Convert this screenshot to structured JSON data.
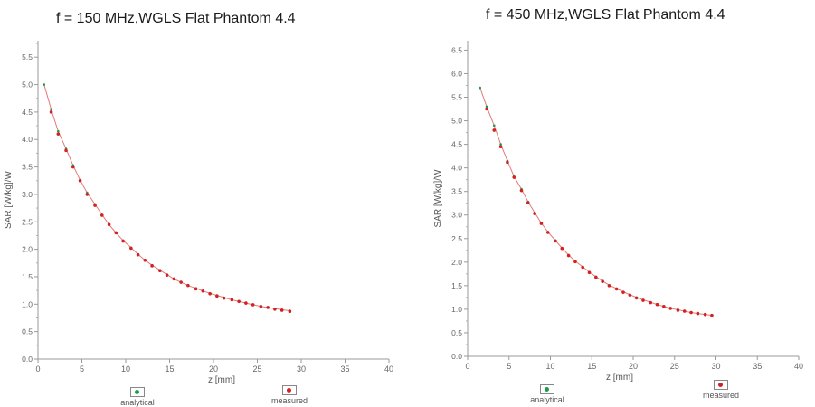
{
  "chart_data": [
    {
      "type": "scatter",
      "title": "f = 150 MHz,WGLS Flat Phantom 4.4",
      "xlabel": "z [mm]",
      "ylabel": "SAR [W/kg]/W",
      "xlim": [
        0,
        40
      ],
      "ylim": [
        0,
        5.8
      ],
      "xticks": [
        "0",
        "5",
        "10",
        "15",
        "20",
        "25",
        "30",
        "35",
        "40"
      ],
      "yticks": [
        "0.0",
        "0.5",
        "1.0",
        "1.5",
        "2.0",
        "2.5",
        "3.0",
        "3.5",
        "4.0",
        "4.5",
        "5.0",
        "5.5"
      ],
      "legend_position": "bottom",
      "series": [
        {
          "name": "analytical",
          "color": "#1e9a4b",
          "x": [
            0.7,
            1.5,
            2.3,
            3.2,
            4.0,
            4.8,
            5.6,
            6.5,
            7.3,
            8.1,
            8.9,
            9.7,
            10.6,
            11.4,
            12.2,
            13.0,
            13.9,
            14.7,
            15.5,
            16.3,
            17.1,
            18.0,
            18.8,
            19.6,
            20.4,
            21.2,
            22.1,
            22.9,
            23.7,
            24.5,
            25.4,
            26.2,
            27.0,
            27.8,
            28.7
          ],
          "y": [
            5.0,
            4.55,
            4.15,
            3.83,
            3.53,
            3.26,
            3.03,
            2.82,
            2.63,
            2.45,
            2.3,
            2.16,
            2.03,
            1.91,
            1.8,
            1.71,
            1.62,
            1.54,
            1.46,
            1.4,
            1.34,
            1.29,
            1.24,
            1.2,
            1.16,
            1.12,
            1.08,
            1.05,
            1.02,
            0.99,
            0.96,
            0.94,
            0.92,
            0.9,
            0.88
          ]
        },
        {
          "name": "measured",
          "color": "#d42020",
          "x": [
            1.5,
            2.3,
            3.2,
            4.0,
            4.8,
            5.6,
            6.5,
            7.3,
            8.1,
            8.9,
            9.7,
            10.6,
            11.4,
            12.2,
            13.0,
            13.9,
            14.7,
            15.5,
            16.3,
            17.1,
            18.0,
            18.8,
            19.6,
            20.4,
            21.2,
            22.1,
            22.9,
            23.7,
            24.5,
            25.4,
            26.2,
            27.0,
            27.8,
            28.7
          ],
          "y": [
            4.5,
            4.1,
            3.8,
            3.5,
            3.25,
            3.0,
            2.8,
            2.62,
            2.45,
            2.3,
            2.15,
            2.02,
            1.9,
            1.8,
            1.7,
            1.61,
            1.53,
            1.46,
            1.4,
            1.34,
            1.28,
            1.24,
            1.19,
            1.15,
            1.11,
            1.08,
            1.05,
            1.02,
            0.99,
            0.96,
            0.94,
            0.91,
            0.89,
            0.87
          ]
        }
      ]
    },
    {
      "type": "scatter",
      "title": "f = 450 MHz,WGLS Flat Phantom 4.4",
      "xlabel": "z [mm]",
      "ylabel": "SAR [W/kg]/W",
      "xlim": [
        0,
        40
      ],
      "ylim": [
        0,
        6.7
      ],
      "xticks": [
        "0",
        "5",
        "10",
        "15",
        "20",
        "25",
        "30",
        "35",
        "40"
      ],
      "yticks": [
        "0.0",
        "0.5",
        "1.0",
        "1.5",
        "2.0",
        "2.5",
        "3.0",
        "3.5",
        "4.0",
        "4.5",
        "5.0",
        "5.5",
        "6.0",
        "6.5"
      ],
      "legend_position": "bottom",
      "series": [
        {
          "name": "analytical",
          "color": "#1e9a4b",
          "x": [
            1.5,
            2.3,
            3.2,
            4.0,
            4.8,
            5.6,
            6.5,
            7.3,
            8.1,
            8.9,
            9.7,
            10.6,
            11.4,
            12.2,
            13.0,
            13.9,
            14.7,
            15.5,
            16.3,
            17.1,
            18.0,
            18.8,
            19.6,
            20.4,
            21.2,
            22.1,
            22.9,
            23.7,
            24.5,
            25.4,
            26.2,
            27.0,
            27.8,
            28.7,
            29.5
          ],
          "y": [
            5.7,
            5.3,
            4.9,
            4.5,
            4.15,
            3.82,
            3.55,
            3.28,
            3.05,
            2.83,
            2.64,
            2.46,
            2.3,
            2.15,
            2.02,
            1.9,
            1.79,
            1.69,
            1.6,
            1.51,
            1.44,
            1.37,
            1.31,
            1.25,
            1.2,
            1.15,
            1.1,
            1.06,
            1.02,
            0.99,
            0.96,
            0.93,
            0.91,
            0.89,
            0.87
          ]
        },
        {
          "name": "measured",
          "color": "#d42020",
          "x": [
            2.3,
            3.2,
            4.0,
            4.8,
            5.6,
            6.5,
            7.3,
            8.1,
            8.9,
            9.7,
            10.6,
            11.4,
            12.2,
            13.0,
            13.9,
            14.7,
            15.5,
            16.3,
            17.1,
            18.0,
            18.8,
            19.6,
            20.4,
            21.2,
            22.1,
            22.9,
            23.7,
            24.5,
            25.4,
            26.2,
            27.0,
            27.8,
            28.7,
            29.5
          ],
          "y": [
            5.25,
            4.8,
            4.45,
            4.12,
            3.8,
            3.52,
            3.26,
            3.03,
            2.82,
            2.63,
            2.45,
            2.29,
            2.14,
            2.01,
            1.89,
            1.78,
            1.68,
            1.59,
            1.5,
            1.43,
            1.36,
            1.3,
            1.24,
            1.19,
            1.14,
            1.1,
            1.06,
            1.02,
            0.98,
            0.96,
            0.93,
            0.91,
            0.89,
            0.87
          ]
        }
      ]
    }
  ]
}
